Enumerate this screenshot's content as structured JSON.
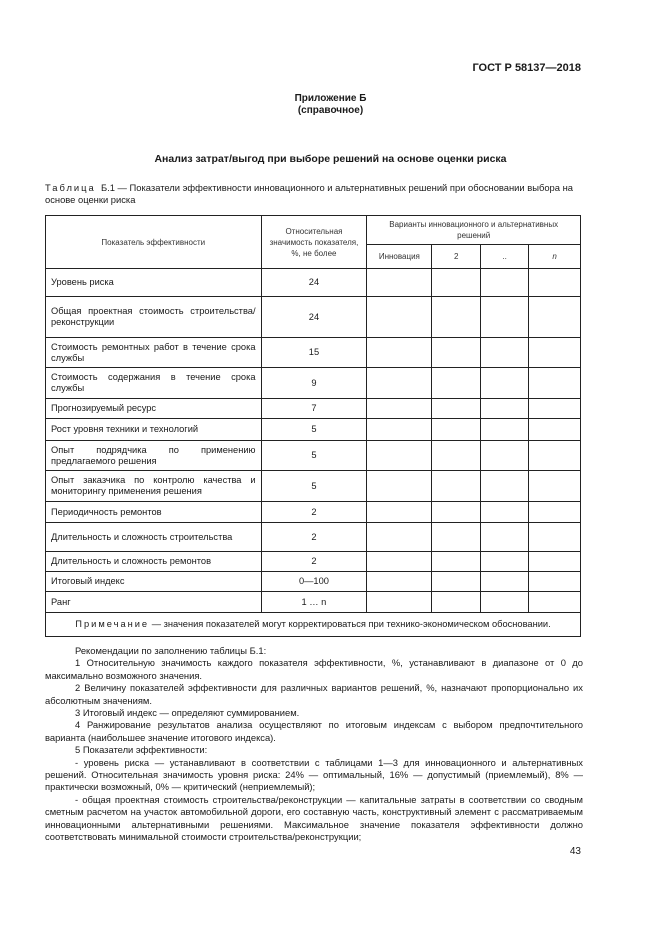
{
  "header": {
    "standard": "ГОСТ Р 58137—2018"
  },
  "appendix": {
    "title": "Приложение Б",
    "subtitle": "(справочное)"
  },
  "heading": "Анализ затрат/выгод при выборе решений на основе оценки риска",
  "caption": {
    "label": "Таблица",
    "text": "Б.1 — Показатели эффективности инновационного и альтернативных решений при обосновании выбора на основе оценки риска"
  },
  "table": {
    "headers": {
      "indicator": "Показатель эффективности",
      "significance": "Относительная значимость показателя, %, не более",
      "variants": "Варианты инновационного и альтернативных решений",
      "sub": [
        "Инновация",
        "2",
        "..",
        "n"
      ]
    },
    "rows": [
      {
        "name": "Уровень риска",
        "value": "24"
      },
      {
        "name": "Общая проектная стоимость строительства/реконструкции",
        "value": "24"
      },
      {
        "name": "Стоимость ремонтных работ в течение срока службы",
        "value": "15"
      },
      {
        "name": "Стоимость содержания в течение срока службы",
        "value": "9"
      },
      {
        "name": "Прогнозируемый ресурс",
        "value": "7"
      },
      {
        "name": "Рост уровня техники и технологий",
        "value": "5"
      },
      {
        "name": "Опыт подрядчика по применению предлагаемого решения",
        "value": "5"
      },
      {
        "name": "Опыт заказчика по контролю качества и мониторингу применения решения",
        "value": "5"
      },
      {
        "name": "Периодичность ремонтов",
        "value": "2"
      },
      {
        "name": "Длительность и сложность строительства",
        "value": "2"
      },
      {
        "name": "Длительность и сложность ремонтов",
        "value": "2"
      },
      {
        "name": "Итоговый индекс",
        "value": "0—100"
      },
      {
        "name": "Ранг",
        "value": "1 … n"
      }
    ],
    "note": {
      "label": "Примечание",
      "text": "— значения показателей могут корректироваться при технико-экономическом обосновании."
    }
  },
  "recommendations": [
    "Рекомендации по заполнению таблицы Б.1:",
    "1 Относительную значимость каждого показателя эффективности, %, устанавливают в диапазоне от 0 до максимально возможного значения.",
    "2 Величину показателей эффективности для различных вариантов решений, %, назначают пропорционально их абсолютным значениям.",
    "3 Итоговый индекс — определяют суммированием.",
    "4 Ранжирование результатов анализа осуществляют по итоговым индексам с выбором предпочтительного варианта (наибольшее значение итогового индекса).",
    "5 Показатели эффективности:",
    "- уровень риска — устанавливают в соответствии с таблицами 1—3 для инновационного и альтернативных решений. Относительная значимость уровня риска: 24% — оптимальный, 16% — допустимый (приемлемый), 8% — практически возможный, 0% — критический (неприемлемый);",
    "- общая проектная стоимость строительства/реконструкции — капитальные затраты в соответствии со сводным сметным расчетом на участок автомобильной дороги, его составную часть, конструктивный элемент с рассматриваемым инновационными альтернативными решениями. Максимальное значение показателя эффективности должно соответствовать минимальной стоимости строительства/реконструкции;"
  ],
  "page_number": "43"
}
